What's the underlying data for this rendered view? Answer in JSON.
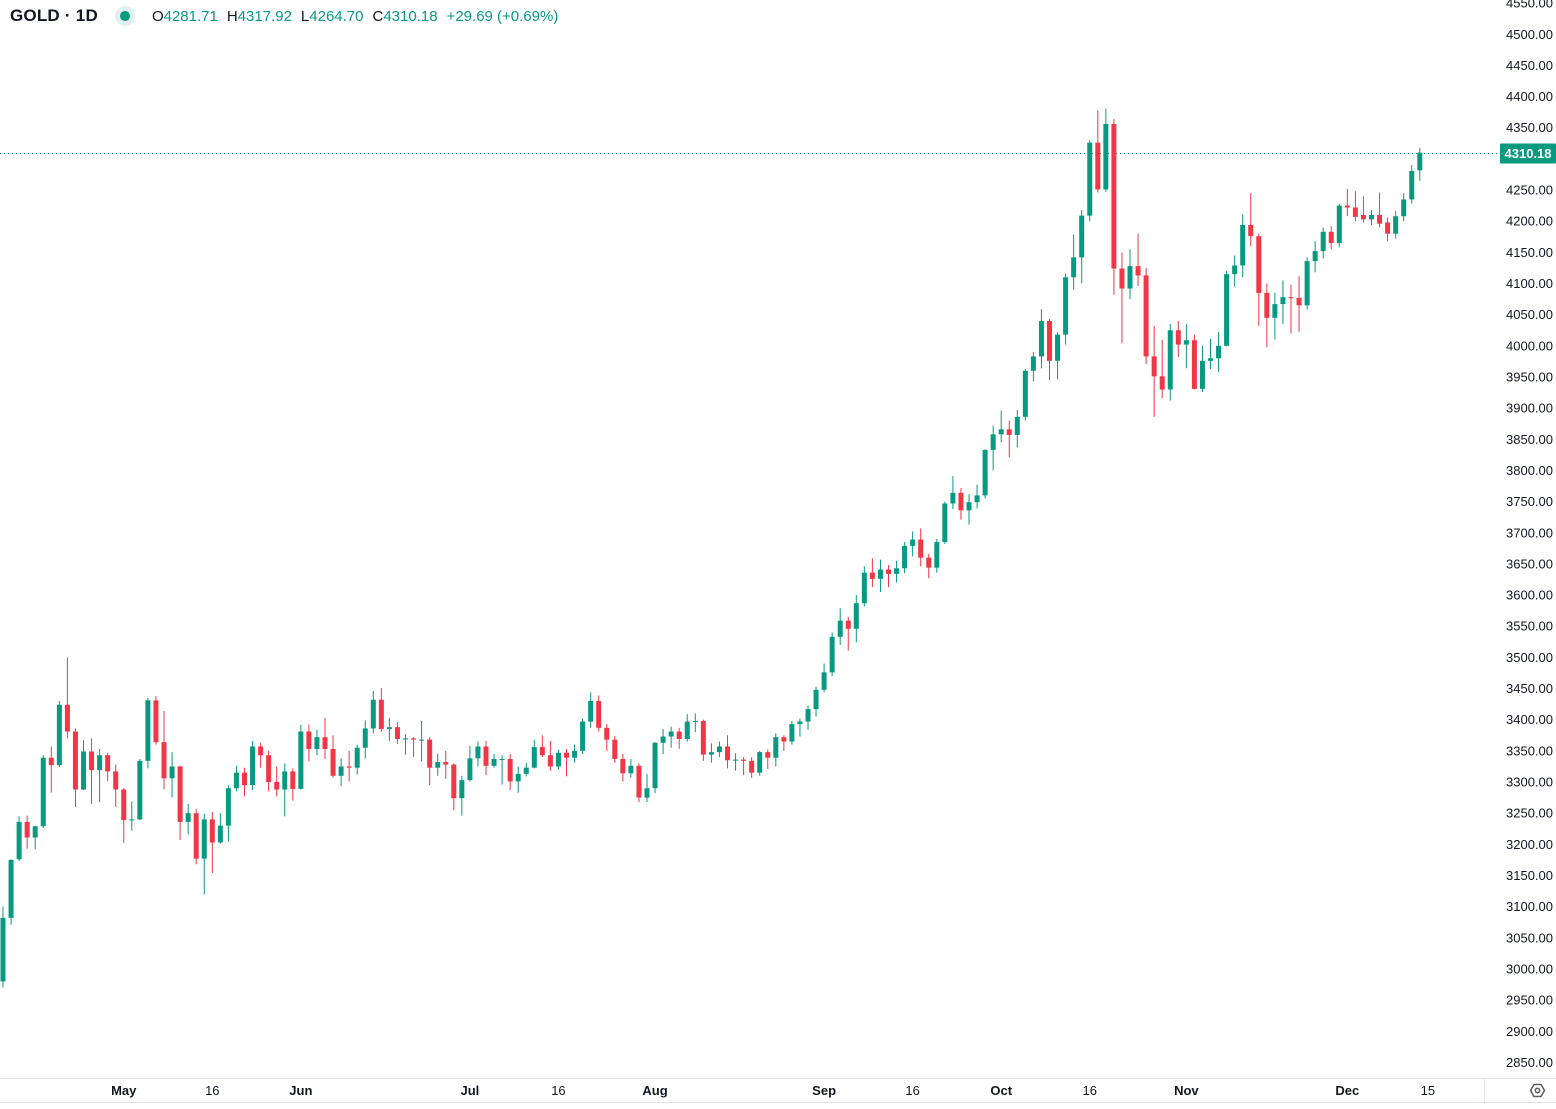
{
  "window": {
    "title": "GOLD · 1D"
  },
  "header": {
    "symbol": "GOLD",
    "separator": "·",
    "interval": "1D",
    "ohlc": {
      "open_label": "O",
      "open": "4281.71",
      "high_label": "H",
      "high": "4317.92",
      "low_label": "L",
      "low": "4264.70",
      "close_label": "C",
      "close": "4310.18",
      "change": "+29.69",
      "change_pct": "(+0.69%)"
    }
  },
  "icons": {
    "data_mode_dot": "filled-teal-circle-with-halo",
    "bottom_right_gear": "hex-nut-gear"
  },
  "colors": {
    "up": "#089981",
    "down": "#F23645",
    "text": "#131722",
    "axis_text": "#131722",
    "separator": "#E0E3EB",
    "last_price_line": "#089981",
    "badge_bg": "#089981",
    "badge_text": "#FFFFFF",
    "gear": "#5A5D66",
    "background": "#FFFFFF"
  },
  "price_axis": {
    "tick_start": 2850,
    "tick_end": 4550,
    "tick_step": 50,
    "decimals": 2
  },
  "time_axis": {
    "ticks": [
      {
        "label": "May",
        "index": 15,
        "month": true
      },
      {
        "label": "16",
        "index": 26,
        "month": false
      },
      {
        "label": "Jun",
        "index": 37,
        "month": true
      },
      {
        "label": "Jul",
        "index": 58,
        "month": true
      },
      {
        "label": "16",
        "index": 69,
        "month": false
      },
      {
        "label": "Aug",
        "index": 81,
        "month": true
      },
      {
        "label": "Sep",
        "index": 102,
        "month": true
      },
      {
        "label": "16",
        "index": 113,
        "month": false
      },
      {
        "label": "Oct",
        "index": 124,
        "month": true
      },
      {
        "label": "16",
        "index": 135,
        "month": false
      },
      {
        "label": "Nov",
        "index": 147,
        "month": true
      },
      {
        "label": "Dec",
        "index": 167,
        "month": true
      },
      {
        "label": "15",
        "index": 177,
        "month": false
      }
    ]
  },
  "last_price": {
    "value": 4310.18,
    "label": "4310.18"
  },
  "chart_data": {
    "type": "candlestick",
    "title": "GOLD 1D daily candlestick chart",
    "symbol": "GOLD",
    "interval": "1D",
    "grid": false,
    "legend_position": "none",
    "ylim": [
      2825,
      4555
    ],
    "x_start_date": "2025-04-09",
    "x_end_date": "2025-12-12",
    "columns": [
      "date",
      "open",
      "high",
      "low",
      "close"
    ],
    "candles": [
      [
        "04-09",
        2980,
        3100,
        2970,
        3082
      ],
      [
        "04-10",
        3082,
        3176,
        3071,
        3175
      ],
      [
        "04-11",
        3176,
        3245,
        3173,
        3236
      ],
      [
        "04-14",
        3236,
        3246,
        3193,
        3211
      ],
      [
        "04-15",
        3211,
        3230,
        3192,
        3229
      ],
      [
        "04-16",
        3229,
        3343,
        3226,
        3339
      ],
      [
        "04-17",
        3339,
        3357,
        3283,
        3327
      ],
      [
        "04-21",
        3327,
        3430,
        3324,
        3424
      ],
      [
        "04-22",
        3424,
        3500,
        3370,
        3381
      ],
      [
        "04-23",
        3381,
        3386,
        3260,
        3288
      ],
      [
        "04-24",
        3288,
        3367,
        3287,
        3349
      ],
      [
        "04-25",
        3349,
        3370,
        3265,
        3319
      ],
      [
        "04-28",
        3319,
        3353,
        3268,
        3343
      ],
      [
        "04-29",
        3343,
        3347,
        3301,
        3317
      ],
      [
        "04-30",
        3317,
        3328,
        3260,
        3288
      ],
      [
        "05-01",
        3288,
        3290,
        3202,
        3239
      ],
      [
        "05-02",
        3239,
        3269,
        3222,
        3240
      ],
      [
        "05-05",
        3240,
        3337,
        3239,
        3334
      ],
      [
        "05-06",
        3334,
        3435,
        3322,
        3431
      ],
      [
        "05-07",
        3431,
        3438,
        3360,
        3364
      ],
      [
        "05-08",
        3364,
        3414,
        3288,
        3306
      ],
      [
        "05-09",
        3306,
        3348,
        3275,
        3325
      ],
      [
        "05-12",
        3325,
        3326,
        3207,
        3236
      ],
      [
        "05-13",
        3236,
        3265,
        3216,
        3250
      ],
      [
        "05-14",
        3250,
        3257,
        3168,
        3177
      ],
      [
        "05-15",
        3177,
        3249,
        3120,
        3240
      ],
      [
        "05-16",
        3240,
        3252,
        3154,
        3203
      ],
      [
        "05-19",
        3203,
        3250,
        3201,
        3230
      ],
      [
        "05-20",
        3230,
        3295,
        3204,
        3290
      ],
      [
        "05-21",
        3290,
        3326,
        3285,
        3315
      ],
      [
        "05-22",
        3315,
        3323,
        3277,
        3295
      ],
      [
        "05-23",
        3295,
        3366,
        3287,
        3357
      ],
      [
        "05-26",
        3357,
        3363,
        3323,
        3343
      ],
      [
        "05-27",
        3343,
        3350,
        3285,
        3300
      ],
      [
        "05-28",
        3300,
        3325,
        3277,
        3288
      ],
      [
        "05-29",
        3288,
        3330,
        3245,
        3317
      ],
      [
        "05-30",
        3317,
        3322,
        3270,
        3289
      ],
      [
        "06-02",
        3289,
        3392,
        3288,
        3381
      ],
      [
        "06-03",
        3381,
        3392,
        3333,
        3353
      ],
      [
        "06-04",
        3353,
        3384,
        3343,
        3372
      ],
      [
        "06-05",
        3372,
        3403,
        3337,
        3353
      ],
      [
        "06-06",
        3353,
        3375,
        3307,
        3310
      ],
      [
        "06-09",
        3310,
        3338,
        3293,
        3325
      ],
      [
        "06-10",
        3325,
        3350,
        3301,
        3323
      ],
      [
        "06-11",
        3323,
        3360,
        3312,
        3355
      ],
      [
        "06-12",
        3355,
        3399,
        3338,
        3386
      ],
      [
        "06-13",
        3386,
        3446,
        3378,
        3432
      ],
      [
        "06-16",
        3432,
        3451,
        3381,
        3385
      ],
      [
        "06-17",
        3385,
        3403,
        3366,
        3388
      ],
      [
        "06-18",
        3388,
        3396,
        3361,
        3369
      ],
      [
        "06-19",
        3369,
        3377,
        3344,
        3370
      ],
      [
        "06-20",
        3370,
        3372,
        3340,
        3368
      ],
      [
        "06-23",
        3368,
        3398,
        3333,
        3368
      ],
      [
        "06-24",
        3368,
        3372,
        3295,
        3323
      ],
      [
        "06-25",
        3323,
        3345,
        3310,
        3332
      ],
      [
        "06-26",
        3332,
        3350,
        3305,
        3328
      ],
      [
        "06-27",
        3328,
        3330,
        3255,
        3274
      ],
      [
        "06-30",
        3274,
        3310,
        3246,
        3303
      ],
      [
        "07-01",
        3303,
        3358,
        3301,
        3338
      ],
      [
        "07-02",
        3338,
        3365,
        3325,
        3357
      ],
      [
        "07-03",
        3357,
        3366,
        3311,
        3326
      ],
      [
        "07-04",
        3326,
        3345,
        3323,
        3337
      ],
      [
        "07-07",
        3337,
        3343,
        3296,
        3337
      ],
      [
        "07-08",
        3337,
        3345,
        3287,
        3301
      ],
      [
        "07-09",
        3301,
        3325,
        3283,
        3313
      ],
      [
        "07-10",
        3313,
        3331,
        3309,
        3323
      ],
      [
        "07-11",
        3323,
        3368,
        3322,
        3356
      ],
      [
        "07-14",
        3356,
        3375,
        3340,
        3343
      ],
      [
        "07-15",
        3343,
        3366,
        3318,
        3325
      ],
      [
        "07-16",
        3325,
        3352,
        3320,
        3347
      ],
      [
        "07-17",
        3347,
        3353,
        3309,
        3339
      ],
      [
        "07-18",
        3339,
        3360,
        3331,
        3350
      ],
      [
        "07-21",
        3350,
        3402,
        3345,
        3397
      ],
      [
        "07-22",
        3397,
        3444,
        3387,
        3430
      ],
      [
        "07-23",
        3430,
        3439,
        3381,
        3387
      ],
      [
        "07-24",
        3387,
        3393,
        3350,
        3368
      ],
      [
        "07-25",
        3368,
        3374,
        3331,
        3337
      ],
      [
        "07-28",
        3337,
        3345,
        3301,
        3314
      ],
      [
        "07-29",
        3314,
        3337,
        3307,
        3326
      ],
      [
        "07-30",
        3326,
        3330,
        3268,
        3275
      ],
      [
        "07-31",
        3275,
        3313,
        3268,
        3290
      ],
      [
        "08-01",
        3290,
        3364,
        3282,
        3363
      ],
      [
        "08-04",
        3363,
        3385,
        3345,
        3373
      ],
      [
        "08-05",
        3373,
        3389,
        3355,
        3381
      ],
      [
        "08-06",
        3381,
        3387,
        3353,
        3369
      ],
      [
        "08-07",
        3369,
        3409,
        3365,
        3397
      ],
      [
        "08-08",
        3397,
        3410,
        3380,
        3398
      ],
      [
        "08-11",
        3398,
        3400,
        3334,
        3344
      ],
      [
        "08-12",
        3344,
        3362,
        3331,
        3348
      ],
      [
        "08-13",
        3348,
        3365,
        3340,
        3357
      ],
      [
        "08-14",
        3357,
        3375,
        3322,
        3335
      ],
      [
        "08-15",
        3335,
        3346,
        3318,
        3336
      ],
      [
        "08-18",
        3336,
        3340,
        3311,
        3334
      ],
      [
        "08-19",
        3334,
        3340,
        3307,
        3315
      ],
      [
        "08-20",
        3315,
        3350,
        3310,
        3348
      ],
      [
        "08-21",
        3348,
        3352,
        3321,
        3339
      ],
      [
        "08-22",
        3339,
        3378,
        3325,
        3372
      ],
      [
        "08-25",
        3372,
        3375,
        3350,
        3365
      ],
      [
        "08-26",
        3365,
        3398,
        3360,
        3393
      ],
      [
        "08-27",
        3393,
        3402,
        3373,
        3397
      ],
      [
        "08-28",
        3397,
        3423,
        3384,
        3417
      ],
      [
        "08-29",
        3417,
        3453,
        3405,
        3448
      ],
      [
        "09-01",
        3448,
        3490,
        3444,
        3476
      ],
      [
        "09-02",
        3476,
        3540,
        3470,
        3533
      ],
      [
        "09-03",
        3533,
        3579,
        3520,
        3559
      ],
      [
        "09-04",
        3559,
        3565,
        3511,
        3546
      ],
      [
        "09-05",
        3546,
        3600,
        3524,
        3587
      ],
      [
        "09-08",
        3587,
        3646,
        3582,
        3636
      ],
      [
        "09-09",
        3636,
        3659,
        3613,
        3626
      ],
      [
        "09-10",
        3626,
        3657,
        3605,
        3641
      ],
      [
        "09-11",
        3641,
        3648,
        3613,
        3634
      ],
      [
        "09-12",
        3634,
        3655,
        3620,
        3643
      ],
      [
        "09-15",
        3643,
        3685,
        3635,
        3679
      ],
      [
        "09-16",
        3679,
        3702,
        3662,
        3689
      ],
      [
        "09-17",
        3689,
        3707,
        3646,
        3660
      ],
      [
        "09-18",
        3660,
        3666,
        3627,
        3644
      ],
      [
        "09-19",
        3644,
        3690,
        3636,
        3685
      ],
      [
        "09-22",
        3685,
        3750,
        3682,
        3747
      ],
      [
        "09-23",
        3747,
        3791,
        3738,
        3764
      ],
      [
        "09-24",
        3764,
        3772,
        3721,
        3736
      ],
      [
        "09-25",
        3736,
        3762,
        3713,
        3749
      ],
      [
        "09-26",
        3749,
        3777,
        3739,
        3760
      ],
      [
        "09-29",
        3760,
        3834,
        3755,
        3833
      ],
      [
        "09-30",
        3833,
        3872,
        3800,
        3858
      ],
      [
        "10-01",
        3858,
        3896,
        3845,
        3866
      ],
      [
        "10-02",
        3866,
        3880,
        3821,
        3857
      ],
      [
        "10-03",
        3857,
        3897,
        3837,
        3886
      ],
      [
        "10-06",
        3886,
        3963,
        3880,
        3960
      ],
      [
        "10-07",
        3960,
        3990,
        3943,
        3983
      ],
      [
        "10-08",
        3983,
        4059,
        3964,
        4040
      ],
      [
        "10-09",
        4040,
        4043,
        3945,
        3976
      ],
      [
        "10-10",
        3976,
        4022,
        3946,
        4018
      ],
      [
        "10-13",
        4018,
        4116,
        4002,
        4110
      ],
      [
        "10-14",
        4110,
        4179,
        4090,
        4142
      ],
      [
        "10-15",
        4142,
        4218,
        4100,
        4209
      ],
      [
        "10-16",
        4209,
        4330,
        4200,
        4326
      ],
      [
        "10-17",
        4326,
        4378,
        4246,
        4251
      ],
      [
        "10-20",
        4251,
        4381,
        4247,
        4356
      ],
      [
        "10-21",
        4356,
        4364,
        4082,
        4124
      ],
      [
        "10-22",
        4124,
        4150,
        4004,
        4092
      ],
      [
        "10-23",
        4092,
        4155,
        4075,
        4128
      ],
      [
        "10-24",
        4128,
        4180,
        4096,
        4113
      ],
      [
        "10-27",
        4113,
        4125,
        3971,
        3983
      ],
      [
        "10-28",
        3983,
        4032,
        3886,
        3951
      ],
      [
        "10-29",
        3951,
        4010,
        3916,
        3930
      ],
      [
        "10-30",
        3930,
        4035,
        3912,
        4025
      ],
      [
        "10-31",
        4025,
        4040,
        3982,
        4002
      ],
      [
        "11-03",
        4002,
        4035,
        3964,
        4009
      ],
      [
        "11-04",
        4009,
        4018,
        3930,
        3931
      ],
      [
        "11-05",
        3931,
        4000,
        3926,
        3976
      ],
      [
        "11-06",
        3976,
        4011,
        3963,
        3980
      ],
      [
        "11-07",
        3980,
        4022,
        3958,
        4000
      ],
      [
        "11-10",
        4000,
        4120,
        3999,
        4115
      ],
      [
        "11-11",
        4115,
        4145,
        4095,
        4129
      ],
      [
        "11-12",
        4129,
        4211,
        4110,
        4194
      ],
      [
        "11-13",
        4194,
        4245,
        4160,
        4176
      ],
      [
        "11-14",
        4176,
        4180,
        4032,
        4085
      ],
      [
        "11-17",
        4085,
        4100,
        3998,
        4045
      ],
      [
        "11-18",
        4045,
        4085,
        4010,
        4067
      ],
      [
        "11-19",
        4067,
        4105,
        4035,
        4078
      ],
      [
        "11-20",
        4078,
        4098,
        4020,
        4077
      ],
      [
        "11-21",
        4077,
        4112,
        4022,
        4065
      ],
      [
        "11-24",
        4065,
        4142,
        4058,
        4136
      ],
      [
        "11-25",
        4136,
        4168,
        4118,
        4152
      ],
      [
        "11-26",
        4152,
        4190,
        4140,
        4183
      ],
      [
        "11-27",
        4183,
        4192,
        4155,
        4165
      ],
      [
        "11-28",
        4165,
        4228,
        4158,
        4225
      ],
      [
        "12-01",
        4225,
        4252,
        4208,
        4222
      ],
      [
        "12-02",
        4222,
        4248,
        4200,
        4207
      ],
      [
        "12-03",
        4210,
        4240,
        4198,
        4203
      ],
      [
        "12-04",
        4203,
        4218,
        4194,
        4210
      ],
      [
        "12-05",
        4210,
        4246,
        4190,
        4196
      ],
      [
        "12-08",
        4198,
        4206,
        4168,
        4180
      ],
      [
        "12-09",
        4180,
        4216,
        4172,
        4208
      ],
      [
        "12-10",
        4208,
        4245,
        4200,
        4235
      ],
      [
        "12-11",
        4235,
        4290,
        4228,
        4280.49
      ],
      [
        "12-12",
        4281.71,
        4317.92,
        4264.7,
        4310.18
      ]
    ]
  }
}
